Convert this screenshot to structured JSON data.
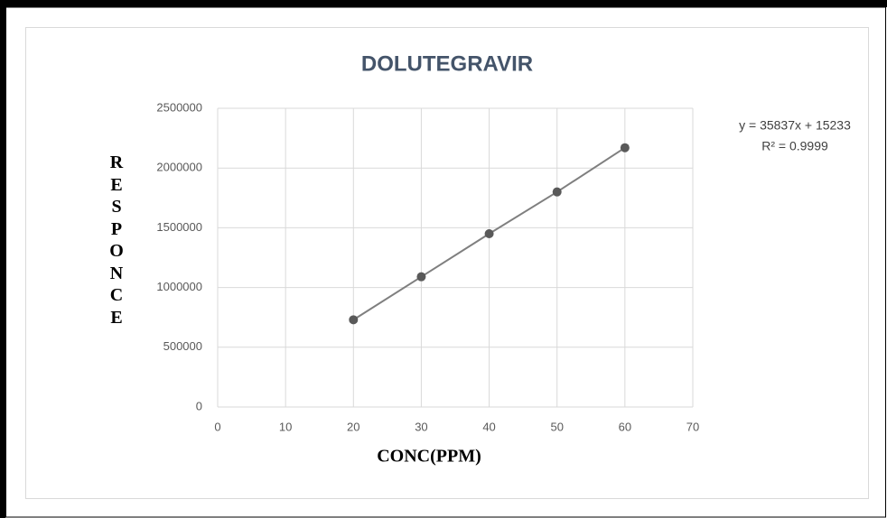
{
  "chart_data": {
    "type": "scatter",
    "title": "DOLUTEGRAVIR",
    "x_label": "CONC(PPM)",
    "y_label": "RESPONCE",
    "annotations": [
      "y = 35837x + 15233",
      "R² = 0.9999"
    ],
    "series": [
      {
        "name": "Responce",
        "color": "#595959",
        "x": [
          20,
          30,
          40,
          50,
          60
        ],
        "values": [
          730000,
          1090000,
          1450000,
          1800000,
          2170000
        ]
      }
    ],
    "xlim": [
      0,
      70
    ],
    "xticks": [
      0,
      10,
      20,
      30,
      40,
      50,
      60,
      70
    ],
    "ylim": [
      0,
      2500000
    ],
    "yticks": [
      0,
      500000,
      1000000,
      1500000,
      2000000,
      2500000
    ],
    "grid": true
  }
}
